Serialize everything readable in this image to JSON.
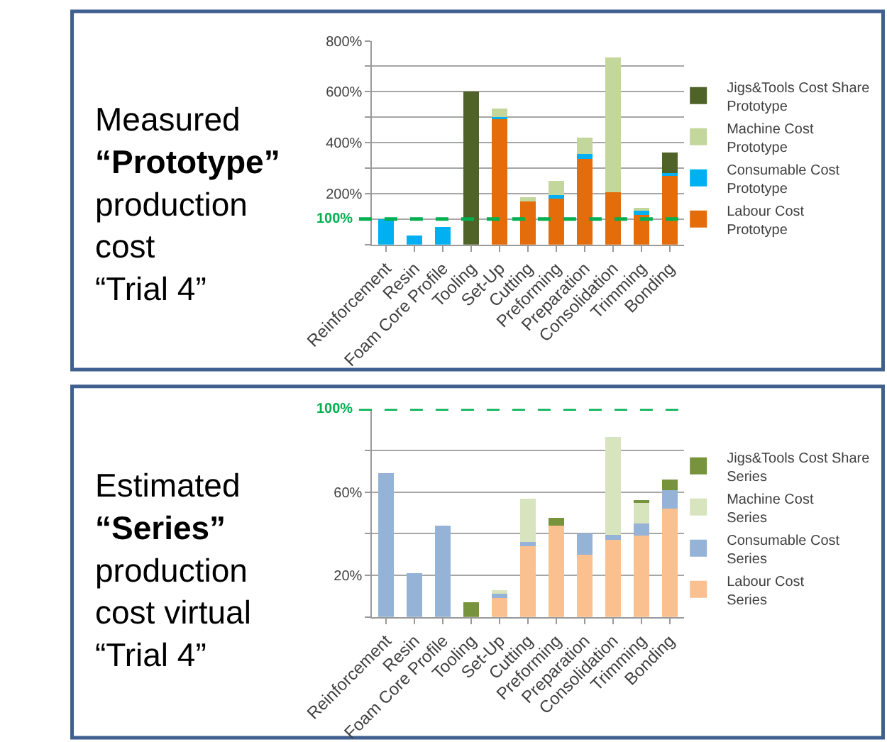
{
  "chart_data": [
    {
      "type": "bar",
      "stacked": true,
      "title": "Measured\n“Prototype”\nproduction\ncost\n“Trial 4”",
      "categories": [
        "Reinforcement",
        "Resin",
        "Foam Core Profile",
        "Tooling",
        "Set-Up",
        "Cutting",
        "Preforming",
        "Preparation",
        "Consolidation",
        "Trimming",
        "Bonding"
      ],
      "series": [
        {
          "name": "Labour Cost Prototype",
          "color": "#e46c0a",
          "values": [
            null,
            null,
            null,
            null,
            495,
            170,
            187,
            337,
            205,
            115,
            273
          ]
        },
        {
          "name": "Consumable Cost Prototype",
          "color": "#00b0f0",
          "values": [
            100,
            35,
            68,
            null,
            5,
            null,
            7,
            20,
            null,
            18,
            9
          ]
        },
        {
          "name": "Machine Cost Prototype",
          "color": "#c3d69b",
          "values": [
            null,
            null,
            null,
            null,
            35,
            17,
            57,
            64,
            531,
            12,
            null
          ]
        },
        {
          "name": "Jigs&Tools Cost Share Prototype",
          "color": "#4f6228",
          "values": [
            null,
            null,
            null,
            600,
            null,
            null,
            null,
            null,
            null,
            null,
            79
          ]
        }
      ],
      "ylim": [
        0,
        800
      ],
      "yticks": [
        {
          "value": 0,
          "label": null
        },
        {
          "value": 100,
          "label": null
        },
        {
          "value": 200,
          "label": "200%"
        },
        {
          "value": 300,
          "label": null
        },
        {
          "value": 400,
          "label": "400%"
        },
        {
          "value": 500,
          "label": null
        },
        {
          "value": 600,
          "label": "600%"
        },
        {
          "value": 700,
          "label": null
        },
        {
          "value": 800,
          "label": "800%"
        }
      ],
      "grid": "y",
      "legend": "right",
      "ref_lines": [
        {
          "axis": "y",
          "value": 100,
          "label": "100%",
          "color": "#00b050",
          "line_style": "dashed"
        }
      ]
    },
    {
      "type": "bar",
      "stacked": true,
      "title": "Estimated\n“Series”\nproduction\ncost virtual\n“Trial 4”",
      "categories": [
        "Reinforcement",
        "Resin",
        "Foam Core Profile",
        "Tooling",
        "Set-Up",
        "Cutting",
        "Preforming",
        "Preparation",
        "Consolidation",
        "Trimming",
        "Bonding"
      ],
      "series": [
        {
          "name": "Labour Cost Series",
          "color": "#fac090",
          "values": [
            null,
            null,
            null,
            null,
            9,
            34,
            44,
            30,
            37,
            39,
            52
          ]
        },
        {
          "name": "Consumable Cost Series",
          "color": "#95b3d7",
          "values": [
            69,
            21,
            44,
            null,
            2,
            2,
            null,
            10,
            2.5,
            6,
            9
          ]
        },
        {
          "name": "Machine Cost Series",
          "color": "#d7e4bd",
          "values": [
            null,
            null,
            null,
            null,
            2,
            21,
            null,
            null,
            47,
            10,
            null
          ]
        },
        {
          "name": "Jigs&Tools Cost Share Series",
          "color": "#77933c",
          "values": [
            null,
            null,
            null,
            7,
            null,
            null,
            3.5,
            null,
            null,
            1,
            5
          ]
        }
      ],
      "ylim": [
        0,
        100
      ],
      "yticks": [
        {
          "value": 0,
          "label": null
        },
        {
          "value": 20,
          "label": "20%"
        },
        {
          "value": 40,
          "label": null
        },
        {
          "value": 60,
          "label": "60%"
        },
        {
          "value": 80,
          "label": null
        }
      ],
      "grid": "y",
      "legend": "right",
      "ref_lines": [
        {
          "axis": "y",
          "value": 100,
          "label": "100%",
          "color": "#00b050",
          "line_style": "dashed"
        }
      ]
    }
  ]
}
